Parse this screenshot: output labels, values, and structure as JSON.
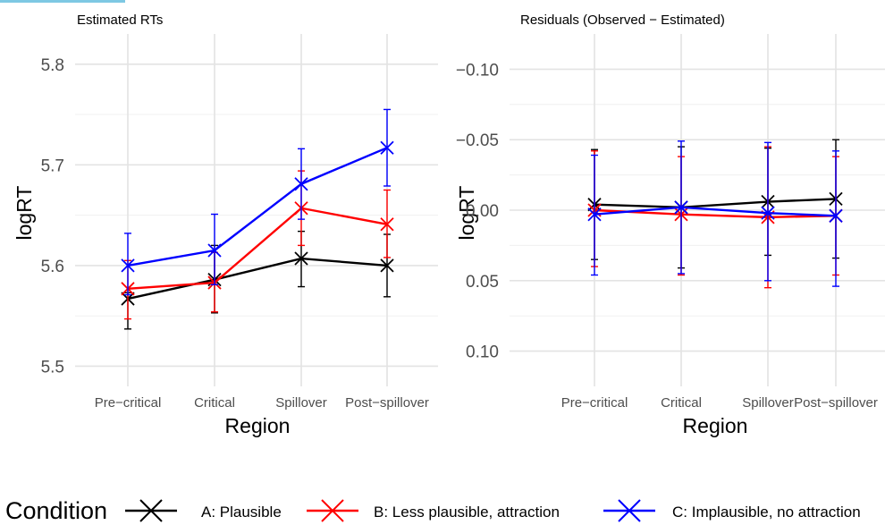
{
  "chart_data": [
    {
      "type": "line",
      "title": "Estimated RTs",
      "xlabel": "Region",
      "ylabel": "logRT",
      "categories": [
        "Pre−critical",
        "Critical",
        "Spillover",
        "Post−spillover"
      ],
      "ylim": [
        5.48,
        5.83
      ],
      "y_ticks": [
        5.5,
        5.6,
        5.7,
        5.8
      ],
      "y_tick_labels": [
        "5.5",
        "5.6",
        "5.7",
        "5.8"
      ],
      "grid": true,
      "series": [
        {
          "name": "A: Plausible",
          "color": "#000000",
          "values": [
            5.567,
            5.586,
            5.607,
            5.6
          ],
          "lower": [
            5.537,
            5.553,
            5.579,
            5.569
          ],
          "upper": [
            5.573,
            5.62,
            5.634,
            5.631
          ]
        },
        {
          "name": "B: Less plausible, attraction",
          "color": "#ff0000",
          "values": [
            5.577,
            5.583,
            5.657,
            5.641
          ],
          "lower": [
            5.547,
            5.554,
            5.62,
            5.608
          ],
          "upper": [
            5.605,
            5.613,
            5.694,
            5.675
          ]
        },
        {
          "name": "C: Implausible, no attraction",
          "color": "#0000ff",
          "values": [
            5.6,
            5.615,
            5.681,
            5.717
          ],
          "lower": [
            5.571,
            5.581,
            5.646,
            5.679
          ],
          "upper": [
            5.632,
            5.651,
            5.716,
            5.755
          ]
        }
      ]
    },
    {
      "type": "line",
      "title": "Residuals (Observed − Estimated)",
      "xlabel": "Region",
      "ylabel": "logRT",
      "categories": [
        "Pre−critical",
        "Critical",
        "Spillover",
        "Post−spillover"
      ],
      "y_reversed": true,
      "ylim": [
        -0.125,
        0.125
      ],
      "y_ticks": [
        -0.1,
        -0.05,
        0.0,
        0.05,
        0.1
      ],
      "y_tick_labels": [
        "−0.10",
        "−0.05",
        "0.00",
        "0.05",
        "0.10"
      ],
      "grid": true,
      "series": [
        {
          "name": "A: Plausible",
          "color": "#000000",
          "values": [
            -0.004,
            -0.002,
            -0.006,
            -0.008
          ],
          "lower": [
            -0.043,
            -0.045,
            -0.044,
            -0.05
          ],
          "upper": [
            0.035,
            0.041,
            0.032,
            0.034
          ]
        },
        {
          "name": "B: Less plausible, attraction",
          "color": "#ff0000",
          "values": [
            0.0,
            0.003,
            0.005,
            0.004
          ],
          "lower": [
            -0.042,
            -0.038,
            -0.045,
            -0.038
          ],
          "upper": [
            0.04,
            0.046,
            0.055,
            0.046
          ]
        },
        {
          "name": "C: Implausible, no attraction",
          "color": "#0000ff",
          "values": [
            0.003,
            -0.002,
            0.002,
            0.004
          ],
          "lower": [
            -0.039,
            -0.049,
            -0.048,
            -0.042
          ],
          "upper": [
            0.046,
            0.045,
            0.05,
            0.054
          ]
        }
      ]
    }
  ],
  "legend": {
    "title": "Condition",
    "placement": "bottom",
    "items": [
      "A: Plausible",
      "B: Less plausible, attraction",
      "C: Implausible, no attraction"
    ],
    "colors": [
      "#000000",
      "#ff0000",
      "#0000ff"
    ]
  }
}
